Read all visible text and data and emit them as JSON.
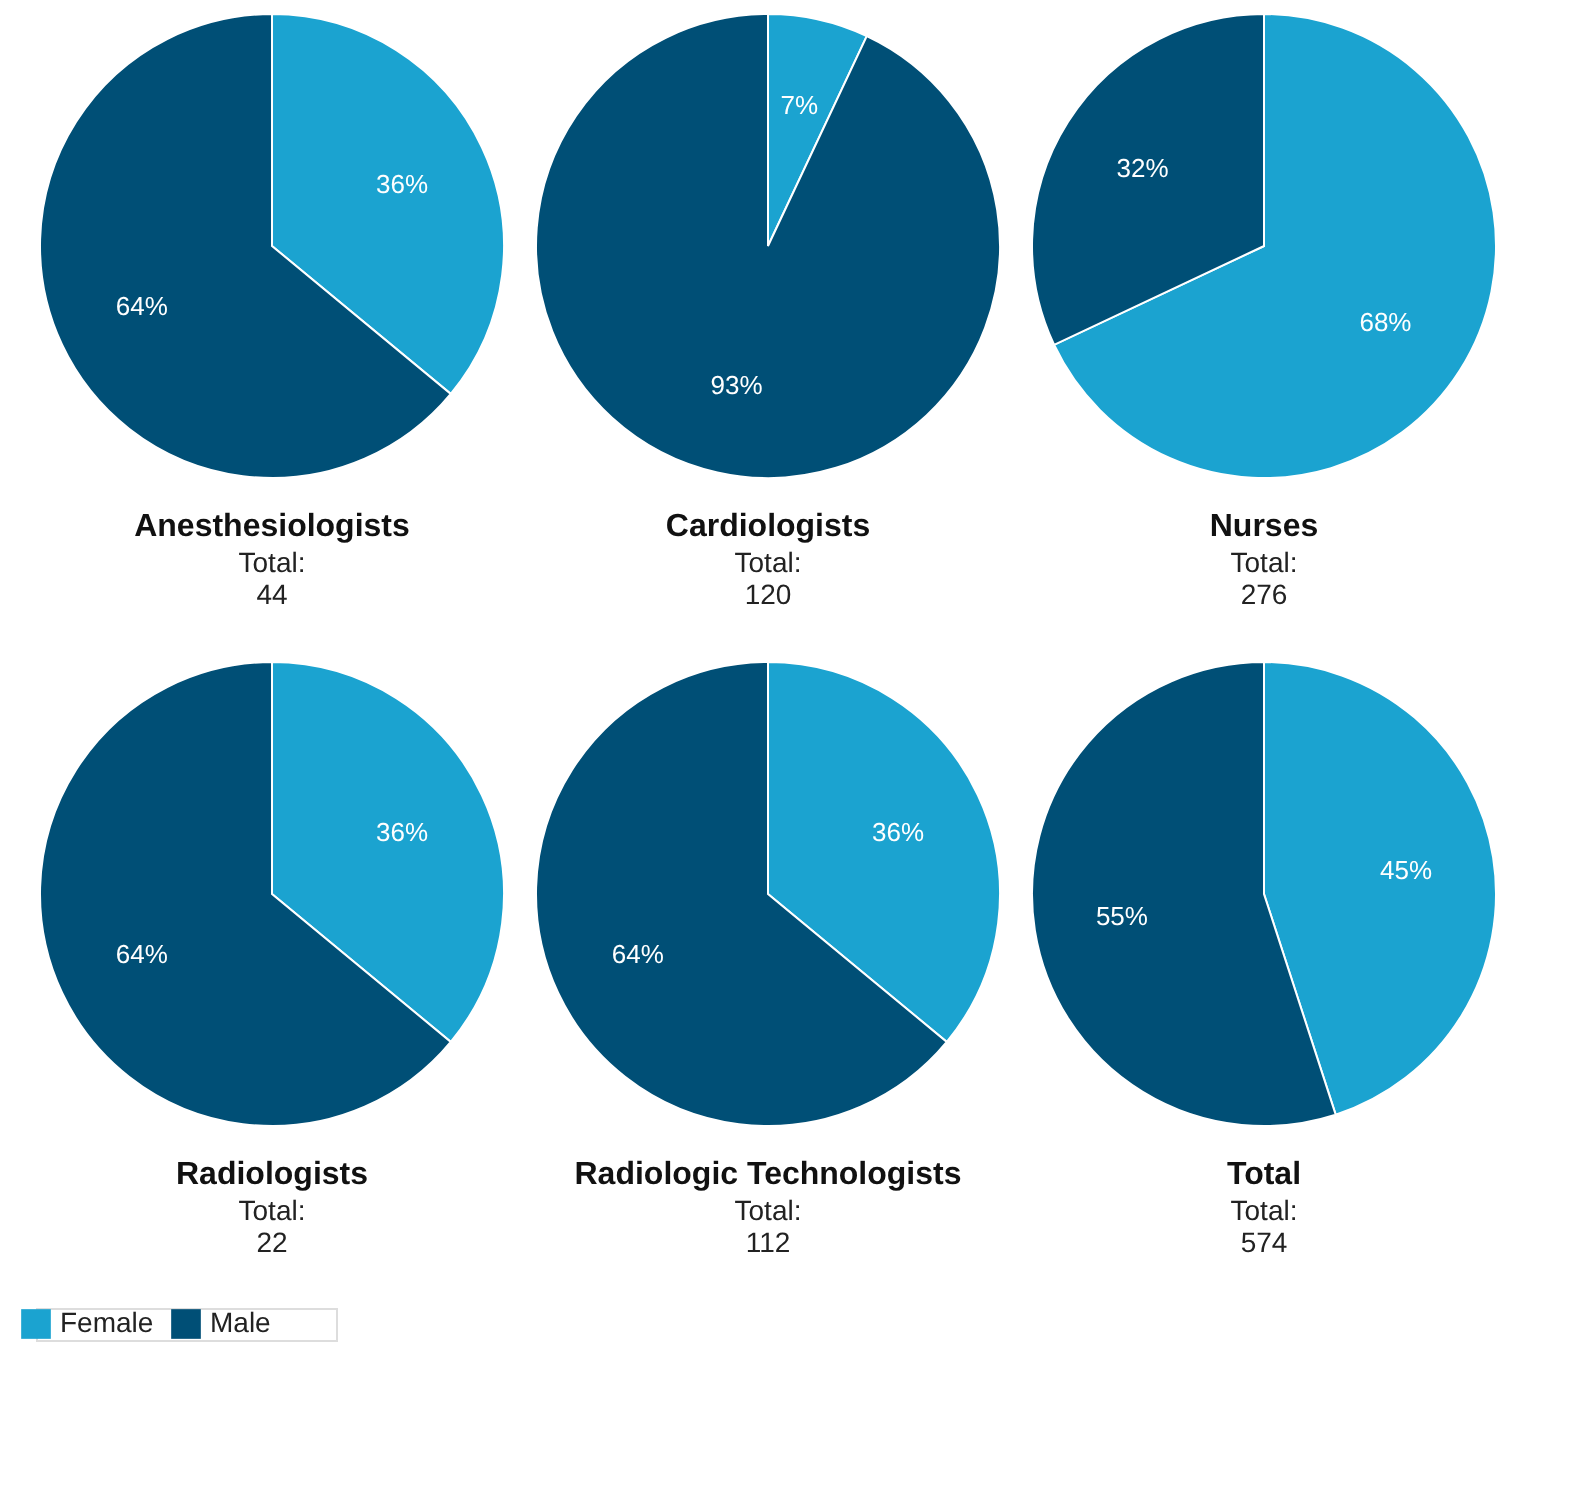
{
  "chart_data": [
    {
      "type": "pie",
      "title": "Anesthesiologists",
      "annotations": [
        "Total:",
        "44"
      ],
      "categories": [
        "Female",
        "Male"
      ],
      "values": [
        36,
        64
      ],
      "colors": [
        "#1ba3d0",
        "#004f76"
      ],
      "value_labels": [
        "36%",
        "64%"
      ],
      "legend": "bottom left"
    },
    {
      "type": "pie",
      "title": "Cardiologists",
      "annotations": [
        "Total:",
        "120"
      ],
      "categories": [
        null,
        null
      ],
      "values": [
        7,
        93
      ],
      "colors": [
        "#1ba3d0",
        "#004f76"
      ],
      "value_labels": [
        "7%",
        "93%"
      ]
    },
    {
      "type": "pie",
      "title": "Nurses",
      "annotations": [
        "Total:",
        "276"
      ],
      "categories": [
        null,
        null
      ],
      "values": [
        68,
        32
      ],
      "colors": [
        "#1ba3d0",
        "#004f76"
      ],
      "value_labels": [
        "68%",
        "32%"
      ]
    },
    {
      "type": "pie",
      "title": "Radiologists",
      "annotations": [
        "Total:",
        "22"
      ],
      "categories": [
        null,
        null
      ],
      "values": [
        36,
        64
      ],
      "colors": [
        "#1ba3d0",
        "#004f76"
      ],
      "value_labels": [
        "36%",
        "64%"
      ]
    },
    {
      "type": "pie",
      "title": "Radiologic Technologists",
      "annotations": [
        "Total:",
        "112"
      ],
      "categories": [
        null,
        null
      ],
      "values": [
        36,
        64
      ],
      "colors": [
        "#1ba3d0",
        "#004f76"
      ],
      "value_labels": [
        "36%",
        "64%"
      ]
    },
    {
      "type": "pie",
      "title": "Total",
      "annotations": [
        "Total:",
        "574"
      ],
      "categories": [
        null,
        null
      ],
      "values": [
        45,
        55
      ],
      "colors": [
        "#1ba3d0",
        "#004f76"
      ],
      "value_labels": [
        "45%",
        "55%"
      ]
    }
  ]
}
